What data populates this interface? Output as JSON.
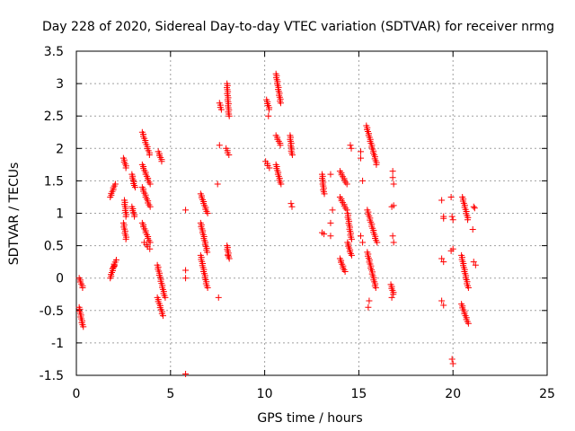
{
  "chart_data": {
    "type": "scatter",
    "title": "Day 228 of 2020, Sidereal Day-to-day VTEC variation (SDTVAR) for receiver nrmg",
    "xlabel": "GPS time / hours",
    "ylabel": "SDTVAR / TECUs",
    "xlim": [
      0,
      25
    ],
    "ylim": [
      -1.5,
      3.5
    ],
    "xticks": [
      0,
      5,
      10,
      15,
      20,
      25
    ],
    "xtick_labels": [
      "0",
      "5",
      "10",
      "15",
      "20",
      "25"
    ],
    "yticks": [
      -1.5,
      -1,
      -0.5,
      0,
      0.5,
      1,
      1.5,
      2,
      2.5,
      3,
      3.5
    ],
    "ytick_labels": [
      "-1.5",
      "-1",
      "-0.5",
      "0",
      "0.5",
      "1",
      "1.5",
      "2",
      "2.5",
      "3",
      "3.5"
    ],
    "grid": true,
    "marker": "+",
    "marker_color": "#ff0000",
    "segments": [
      {
        "x0": 0.15,
        "x1": 0.35,
        "y0": 0.0,
        "y1": -0.15
      },
      {
        "x0": 0.15,
        "x1": 0.35,
        "y0": -0.45,
        "y1": -0.75
      },
      {
        "x0": 1.8,
        "x1": 2.05,
        "y0": 1.25,
        "y1": 1.45
      },
      {
        "x0": 1.8,
        "x1": 2.0,
        "y0": 0.0,
        "y1": 0.2
      },
      {
        "x0": 1.95,
        "x1": 2.1,
        "y0": 0.15,
        "y1": 0.28
      },
      {
        "x0": 2.5,
        "x1": 2.65,
        "y0": 1.85,
        "y1": 1.7
      },
      {
        "x0": 2.55,
        "x1": 2.65,
        "y0": 1.2,
        "y1": 0.95
      },
      {
        "x0": 2.5,
        "x1": 2.65,
        "y0": 0.85,
        "y1": 0.6
      },
      {
        "x0": 2.95,
        "x1": 3.1,
        "y0": 1.6,
        "y1": 1.4
      },
      {
        "x0": 2.95,
        "x1": 3.1,
        "y0": 1.1,
        "y1": 0.95
      },
      {
        "x0": 3.5,
        "x1": 3.9,
        "y0": 2.25,
        "y1": 1.9
      },
      {
        "x0": 3.5,
        "x1": 3.9,
        "y0": 1.75,
        "y1": 1.45
      },
      {
        "x0": 3.5,
        "x1": 3.9,
        "y0": 1.4,
        "y1": 1.1
      },
      {
        "x0": 3.5,
        "x1": 3.9,
        "y0": 0.85,
        "y1": 0.55
      },
      {
        "x0": 3.6,
        "x1": 3.9,
        "y0": 0.55,
        "y1": 0.45
      },
      {
        "x0": 4.35,
        "x1": 4.55,
        "y0": 1.95,
        "y1": 1.8
      },
      {
        "x0": 4.3,
        "x1": 4.7,
        "y0": 0.2,
        "y1": -0.3
      },
      {
        "x0": 4.3,
        "x1": 4.6,
        "y0": -0.3,
        "y1": -0.58
      },
      {
        "x0": 6.6,
        "x1": 6.95,
        "y0": 1.3,
        "y1": 1.0
      },
      {
        "x0": 6.6,
        "x1": 6.95,
        "y0": 0.85,
        "y1": 0.4
      },
      {
        "x0": 6.6,
        "x1": 6.95,
        "y0": 0.35,
        "y1": -0.15
      },
      {
        "x0": 7.6,
        "x1": 7.7,
        "y0": 2.7,
        "y1": 2.6
      },
      {
        "x0": 8.0,
        "x1": 8.1,
        "y0": 3.0,
        "y1": 2.5
      },
      {
        "x0": 7.95,
        "x1": 8.1,
        "y0": 2.0,
        "y1": 1.9
      },
      {
        "x0": 8.0,
        "x1": 8.1,
        "y0": 0.5,
        "y1": 0.3
      },
      {
        "x0": 10.1,
        "x1": 10.25,
        "y0": 2.75,
        "y1": 2.6
      },
      {
        "x0": 10.05,
        "x1": 10.25,
        "y0": 1.8,
        "y1": 1.7
      },
      {
        "x0": 10.6,
        "x1": 10.85,
        "y0": 3.15,
        "y1": 2.7
      },
      {
        "x0": 10.6,
        "x1": 10.85,
        "y0": 2.2,
        "y1": 2.05
      },
      {
        "x0": 10.6,
        "x1": 10.85,
        "y0": 1.75,
        "y1": 1.45
      },
      {
        "x0": 11.35,
        "x1": 11.45,
        "y0": 2.2,
        "y1": 1.9
      },
      {
        "x0": 13.05,
        "x1": 13.15,
        "y0": 1.6,
        "y1": 1.3
      },
      {
        "x0": 14.0,
        "x1": 14.35,
        "y0": 1.65,
        "y1": 1.45
      },
      {
        "x0": 14.0,
        "x1": 14.35,
        "y0": 1.25,
        "y1": 1.05
      },
      {
        "x0": 14.4,
        "x1": 14.6,
        "y0": 1.0,
        "y1": 0.6
      },
      {
        "x0": 14.4,
        "x1": 14.6,
        "y0": 0.55,
        "y1": 0.35
      },
      {
        "x0": 14.0,
        "x1": 14.25,
        "y0": 0.3,
        "y1": 0.1
      },
      {
        "x0": 15.4,
        "x1": 15.95,
        "y0": 2.35,
        "y1": 1.75
      },
      {
        "x0": 15.45,
        "x1": 15.95,
        "y0": 1.05,
        "y1": 0.55
      },
      {
        "x0": 15.45,
        "x1": 15.9,
        "y0": 0.4,
        "y1": -0.15
      },
      {
        "x0": 16.7,
        "x1": 16.85,
        "y0": -0.1,
        "y1": -0.25
      },
      {
        "x0": 20.5,
        "x1": 20.8,
        "y0": 1.25,
        "y1": 0.9
      },
      {
        "x0": 20.45,
        "x1": 20.8,
        "y0": 0.35,
        "y1": -0.15
      },
      {
        "x0": 20.45,
        "x1": 20.8,
        "y0": -0.4,
        "y1": -0.7
      }
    ],
    "points": [
      {
        "x": 5.8,
        "y": 1.05
      },
      {
        "x": 5.8,
        "y": 0.12
      },
      {
        "x": 5.8,
        "y": 0.0
      },
      {
        "x": 5.8,
        "y": -1.48
      },
      {
        "x": 7.5,
        "y": 1.45
      },
      {
        "x": 7.55,
        "y": -0.3
      },
      {
        "x": 7.6,
        "y": 2.05
      },
      {
        "x": 8.05,
        "y": 0.35
      },
      {
        "x": 10.2,
        "y": 2.5
      },
      {
        "x": 11.4,
        "y": 1.15
      },
      {
        "x": 11.45,
        "y": 1.1
      },
      {
        "x": 13.05,
        "y": 0.7
      },
      {
        "x": 13.15,
        "y": 0.68
      },
      {
        "x": 13.5,
        "y": 1.6
      },
      {
        "x": 13.6,
        "y": 1.05
      },
      {
        "x": 13.5,
        "y": 0.85
      },
      {
        "x": 13.5,
        "y": 0.65
      },
      {
        "x": 14.55,
        "y": 2.05
      },
      {
        "x": 14.6,
        "y": 2.0
      },
      {
        "x": 15.1,
        "y": 1.95
      },
      {
        "x": 15.1,
        "y": 1.85
      },
      {
        "x": 15.2,
        "y": 1.5
      },
      {
        "x": 15.1,
        "y": 0.65
      },
      {
        "x": 15.2,
        "y": 0.55
      },
      {
        "x": 15.5,
        "y": -0.45
      },
      {
        "x": 15.55,
        "y": -0.35
      },
      {
        "x": 16.8,
        "y": 1.65
      },
      {
        "x": 16.8,
        "y": 1.55
      },
      {
        "x": 16.85,
        "y": 1.45
      },
      {
        "x": 16.75,
        "y": 1.1
      },
      {
        "x": 16.85,
        "y": 1.12
      },
      {
        "x": 16.8,
        "y": 0.65
      },
      {
        "x": 16.85,
        "y": 0.55
      },
      {
        "x": 16.75,
        "y": -0.3
      },
      {
        "x": 19.4,
        "y": 1.2
      },
      {
        "x": 19.5,
        "y": 0.95
      },
      {
        "x": 19.5,
        "y": 0.92
      },
      {
        "x": 19.4,
        "y": 0.3
      },
      {
        "x": 19.5,
        "y": 0.25
      },
      {
        "x": 19.4,
        "y": -0.35
      },
      {
        "x": 19.5,
        "y": -0.42
      },
      {
        "x": 19.9,
        "y": 1.25
      },
      {
        "x": 19.95,
        "y": 0.95
      },
      {
        "x": 20.0,
        "y": 0.9
      },
      {
        "x": 19.9,
        "y": 0.42
      },
      {
        "x": 20.0,
        "y": 0.45
      },
      {
        "x": 19.95,
        "y": -1.25
      },
      {
        "x": 20.0,
        "y": -1.32
      },
      {
        "x": 21.1,
        "y": 1.1
      },
      {
        "x": 21.15,
        "y": 1.08
      },
      {
        "x": 21.05,
        "y": 0.75
      },
      {
        "x": 21.1,
        "y": 0.25
      },
      {
        "x": 21.2,
        "y": 0.2
      }
    ]
  }
}
